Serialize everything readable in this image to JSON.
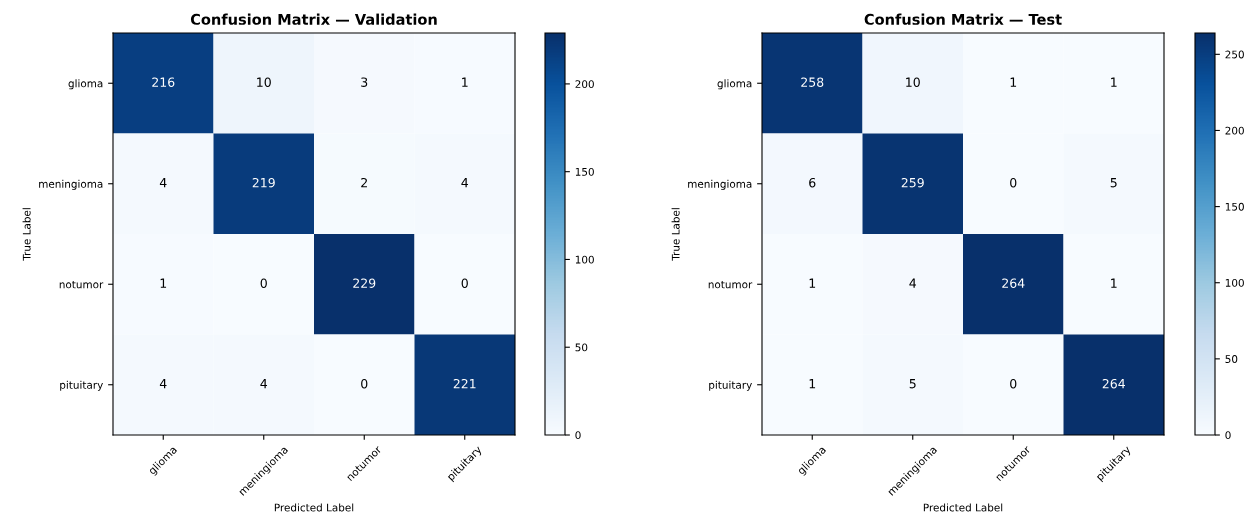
{
  "chart_data": [
    {
      "type": "heatmap",
      "title": "Confusion Matrix — Validation",
      "xlabel": "Predicted Label",
      "ylabel": "True Label",
      "categories": [
        "glioma",
        "meningioma",
        "notumor",
        "pituitary"
      ],
      "y_categories": [
        "glioma",
        "meningioma",
        "notumor",
        "pituitary"
      ],
      "cells": [
        [
          216,
          10,
          3,
          1
        ],
        [
          4,
          219,
          2,
          4
        ],
        [
          1,
          0,
          229,
          0
        ],
        [
          4,
          4,
          0,
          221
        ]
      ],
      "clim": [
        0,
        229
      ],
      "cticks": [
        0,
        50,
        100,
        150,
        200
      ],
      "data_labels": true
    },
    {
      "type": "heatmap",
      "title": "Confusion Matrix — Test",
      "xlabel": "Predicted Label",
      "ylabel": "True Label",
      "categories": [
        "glioma",
        "meningioma",
        "notumor",
        "pituitary"
      ],
      "y_categories": [
        "glioma",
        "meningioma",
        "notumor",
        "pituitary"
      ],
      "cells": [
        [
          258,
          10,
          1,
          1
        ],
        [
          6,
          259,
          0,
          5
        ],
        [
          1,
          4,
          264,
          1
        ],
        [
          1,
          5,
          0,
          264
        ]
      ],
      "clim": [
        0,
        264
      ],
      "cticks": [
        0,
        50,
        100,
        150,
        200,
        250
      ],
      "data_labels": true
    }
  ]
}
